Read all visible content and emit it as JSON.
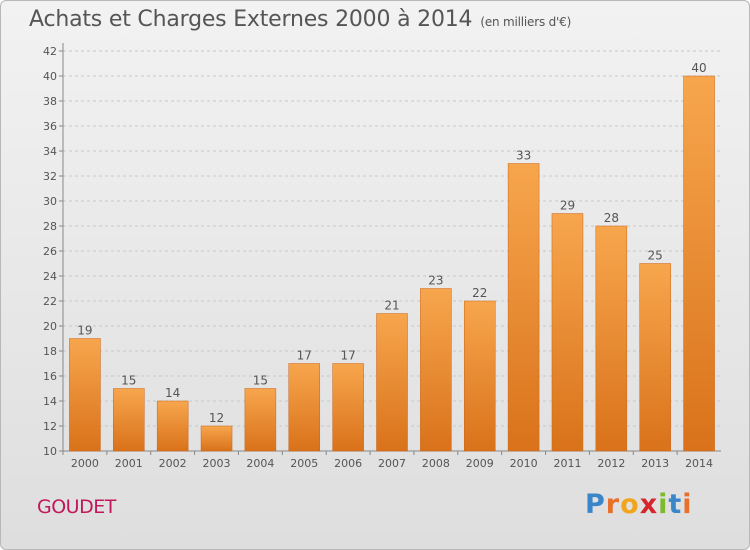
{
  "title": "Achats et Charges Externes 2000 à 2014",
  "subtitle": "(en milliers d'€)",
  "town": "GOUDET",
  "logo": {
    "letters": [
      "P",
      "r",
      "o",
      "x",
      "i",
      "t",
      "i"
    ],
    "colors": [
      "#3a86c8",
      "#e8702a",
      "#f2a51a",
      "#d6262b",
      "#7dbb2d",
      "#3a86c8",
      "#e8702a"
    ]
  },
  "colors": {
    "bar_top": "#f7a64e",
    "bar_bottom": "#d9721a",
    "text": "#555555",
    "grid": "#c8c8c8"
  },
  "chart_data": {
    "type": "bar",
    "categories": [
      "2000",
      "2001",
      "2002",
      "2003",
      "2004",
      "2005",
      "2006",
      "2007",
      "2008",
      "2009",
      "2010",
      "2011",
      "2012",
      "2013",
      "2014"
    ],
    "values": [
      19,
      15,
      14,
      12,
      15,
      17,
      17,
      21,
      23,
      22,
      33,
      29,
      28,
      25,
      40
    ],
    "ylim": [
      10,
      42
    ],
    "yticks": [
      10,
      12,
      14,
      16,
      18,
      20,
      22,
      24,
      26,
      28,
      30,
      32,
      34,
      36,
      38,
      40,
      42
    ],
    "grid": true,
    "data_labels": true
  }
}
